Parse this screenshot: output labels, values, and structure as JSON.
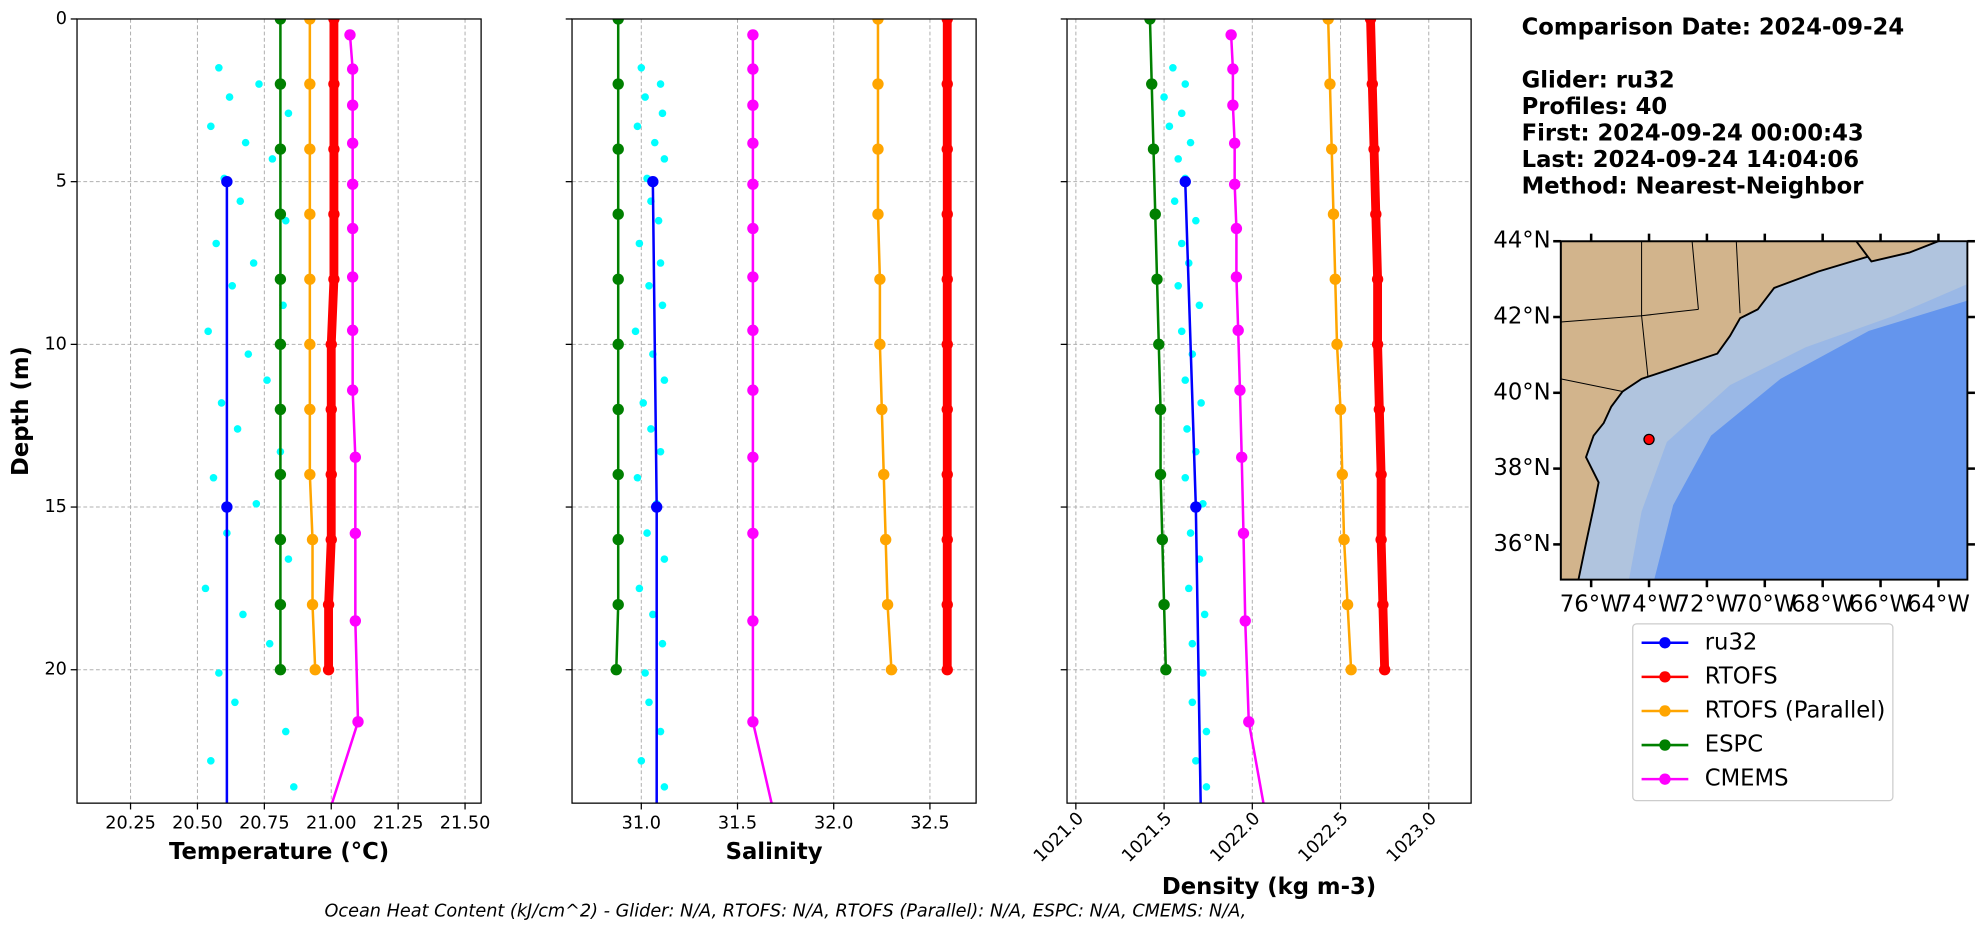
{
  "chart_data": [
    {
      "type": "line",
      "x_label": "Temperature (°C)",
      "y_label": "Depth (m)",
      "xlim": [
        20.05,
        21.56
      ],
      "ylim": [
        0,
        24.1
      ],
      "invert_y": true,
      "grid": true,
      "ytick_labels": true,
      "xticks": [
        20.25,
        {
          "value": 20.5,
          "label": "20.50"
        },
        20.75,
        {
          "value": 21,
          "label": "21.00"
        },
        21.25,
        {
          "value": 21.5,
          "label": "21.50"
        }
      ],
      "yticks": [
        0,
        5,
        10,
        15,
        20
      ],
      "glider_points": {
        "color": "#00ffff",
        "depths": [
          1.5,
          2.0,
          2.4,
          2.9,
          3.3,
          3.8,
          4.3,
          4.9,
          5.6,
          6.2,
          6.9,
          7.5,
          8.2,
          8.8,
          9.6,
          10.3,
          11.1,
          11.8,
          12.6,
          13.3,
          14.1,
          14.9,
          15.8,
          16.6,
          17.5,
          18.3,
          19.2,
          20.1,
          21.0,
          21.9,
          22.8,
          23.6
        ],
        "values": [
          20.58,
          20.73,
          20.62,
          20.84,
          20.55,
          20.68,
          20.78,
          20.6,
          20.66,
          20.83,
          20.57,
          20.71,
          20.63,
          20.82,
          20.54,
          20.69,
          20.76,
          20.59,
          20.65,
          20.81,
          20.56,
          20.72,
          20.61,
          20.84,
          20.53,
          20.67,
          20.77,
          20.58,
          20.64,
          20.83,
          20.55,
          20.86
        ]
      },
      "series": [
        {
          "name": "ru32",
          "color": "#0000ff",
          "linewidth": 2,
          "depths": [
            5,
            15,
            25
          ],
          "values": [
            20.61,
            20.61,
            20.61
          ]
        },
        {
          "name": "RTOFS",
          "color": "#ff0000",
          "linewidth": 7,
          "depths": [
            0,
            2,
            4,
            6,
            8,
            10,
            12,
            14,
            16,
            18,
            20
          ],
          "values": [
            21.01,
            21.01,
            21.01,
            21.01,
            21.01,
            21.0,
            21.0,
            21.0,
            21.0,
            20.99,
            20.99
          ]
        },
        {
          "name": "RTOFS (Parallel)",
          "color": "#ffa500",
          "linewidth": 2,
          "depths": [
            0,
            2,
            4,
            6,
            8,
            10,
            12,
            14,
            16,
            18,
            20
          ],
          "values": [
            20.92,
            20.92,
            20.92,
            20.92,
            20.92,
            20.92,
            20.92,
            20.92,
            20.93,
            20.93,
            20.94
          ]
        },
        {
          "name": "ESPC",
          "color": "#008000",
          "linewidth": 2,
          "depths": [
            0,
            2,
            4,
            6,
            8,
            10,
            12,
            14,
            16,
            18,
            20
          ],
          "values": [
            20.81,
            20.81,
            20.81,
            20.81,
            20.81,
            20.81,
            20.81,
            20.81,
            20.81,
            20.81,
            20.81
          ]
        },
        {
          "name": "CMEMS",
          "color": "#ff00ff",
          "linewidth": 2,
          "depths": [
            0.49,
            1.54,
            2.65,
            3.82,
            5.08,
            6.44,
            7.93,
            9.57,
            11.41,
            13.47,
            15.81,
            18.5,
            21.6,
            25.21
          ],
          "values": [
            21.07,
            21.08,
            21.08,
            21.08,
            21.08,
            21.08,
            21.08,
            21.08,
            21.08,
            21.09,
            21.09,
            21.09,
            21.1,
            20.96
          ]
        }
      ]
    },
    {
      "type": "line",
      "x_label": "Salinity",
      "xlim": [
        30.64,
        32.74
      ],
      "ylim": [
        0,
        24.1
      ],
      "invert_y": true,
      "grid": true,
      "ytick_labels": false,
      "xticks": [
        {
          "value": 31,
          "label": "31.0"
        },
        31.5,
        {
          "value": 32,
          "label": "32.0"
        },
        32.5
      ],
      "yticks": [
        0,
        5,
        10,
        15,
        20
      ],
      "glider_points": {
        "color": "#00ffff",
        "depths": [
          1.5,
          2.0,
          2.4,
          2.9,
          3.3,
          3.8,
          4.3,
          4.9,
          5.6,
          6.2,
          6.9,
          7.5,
          8.2,
          8.8,
          9.6,
          10.3,
          11.1,
          11.8,
          12.6,
          13.3,
          14.1,
          14.9,
          15.8,
          16.6,
          17.5,
          18.3,
          19.2,
          20.1,
          21.0,
          21.9,
          22.8,
          23.6
        ],
        "values": [
          31.0,
          31.1,
          31.02,
          31.11,
          30.98,
          31.07,
          31.12,
          31.03,
          31.05,
          31.09,
          30.99,
          31.1,
          31.04,
          31.11,
          30.97,
          31.06,
          31.12,
          31.01,
          31.05,
          31.1,
          30.98,
          31.08,
          31.03,
          31.12,
          30.99,
          31.06,
          31.11,
          31.02,
          31.04,
          31.1,
          31.0,
          31.12
        ]
      },
      "series": [
        {
          "name": "ru32",
          "color": "#0000ff",
          "linewidth": 2,
          "depths": [
            5,
            15,
            25
          ],
          "values": [
            31.06,
            31.08,
            31.08
          ]
        },
        {
          "name": "RTOFS",
          "color": "#ff0000",
          "linewidth": 7,
          "depths": [
            0,
            2,
            4,
            6,
            8,
            10,
            12,
            14,
            16,
            18,
            20
          ],
          "values": [
            32.59,
            32.59,
            32.59,
            32.59,
            32.59,
            32.59,
            32.59,
            32.59,
            32.59,
            32.59,
            32.59
          ]
        },
        {
          "name": "RTOFS (Parallel)",
          "color": "#ffa500",
          "linewidth": 2,
          "depths": [
            0,
            2,
            4,
            6,
            8,
            10,
            12,
            14,
            16,
            18,
            20
          ],
          "values": [
            32.23,
            32.23,
            32.23,
            32.23,
            32.24,
            32.24,
            32.25,
            32.26,
            32.27,
            32.28,
            32.3
          ]
        },
        {
          "name": "ESPC",
          "color": "#008000",
          "linewidth": 2,
          "depths": [
            0,
            2,
            4,
            6,
            8,
            10,
            12,
            14,
            16,
            18,
            20
          ],
          "values": [
            30.88,
            30.88,
            30.88,
            30.88,
            30.88,
            30.88,
            30.88,
            30.88,
            30.88,
            30.88,
            30.87
          ]
        },
        {
          "name": "CMEMS",
          "color": "#ff00ff",
          "linewidth": 2,
          "depths": [
            0.49,
            1.54,
            2.65,
            3.82,
            5.08,
            6.44,
            7.93,
            9.57,
            11.41,
            13.47,
            15.81,
            18.5,
            21.6,
            25.21
          ],
          "values": [
            31.58,
            31.58,
            31.58,
            31.58,
            31.58,
            31.58,
            31.58,
            31.58,
            31.58,
            31.58,
            31.58,
            31.58,
            31.58,
            31.72
          ]
        }
      ]
    },
    {
      "type": "line",
      "x_label": "Density (kg m-3)",
      "xlim": [
        1020.95,
        1023.24
      ],
      "ylim": [
        0,
        24.1
      ],
      "invert_y": true,
      "grid": true,
      "ytick_labels": false,
      "xtick_rotation": 45,
      "xticks": [
        {
          "value": 1021,
          "label": "1021.0"
        },
        1021.5,
        {
          "value": 1022,
          "label": "1022.0"
        },
        1022.5,
        {
          "value": 1023,
          "label": "1023.0"
        }
      ],
      "yticks": [
        0,
        5,
        10,
        15,
        20
      ],
      "glider_points": {
        "color": "#00ffff",
        "depths": [
          1.5,
          2.0,
          2.4,
          2.9,
          3.3,
          3.8,
          4.3,
          4.9,
          5.6,
          6.2,
          6.9,
          7.5,
          8.2,
          8.8,
          9.6,
          10.3,
          11.1,
          11.8,
          12.6,
          13.3,
          14.1,
          14.9,
          15.8,
          16.6,
          17.5,
          18.3,
          19.2,
          20.1,
          21.0,
          21.9,
          22.8,
          23.6
        ],
        "values": [
          1021.55,
          1021.62,
          1021.5,
          1021.6,
          1021.53,
          1021.65,
          1021.58,
          1021.62,
          1021.56,
          1021.68,
          1021.6,
          1021.64,
          1021.58,
          1021.7,
          1021.6,
          1021.66,
          1021.62,
          1021.71,
          1021.63,
          1021.68,
          1021.62,
          1021.72,
          1021.65,
          1021.7,
          1021.64,
          1021.73,
          1021.66,
          1021.72,
          1021.66,
          1021.74,
          1021.68,
          1021.74
        ]
      },
      "series": [
        {
          "name": "ru32",
          "color": "#0000ff",
          "linewidth": 2,
          "depths": [
            5,
            15,
            25
          ],
          "values": [
            1021.62,
            1021.68,
            1021.71
          ]
        },
        {
          "name": "RTOFS",
          "color": "#ff0000",
          "linewidth": 7,
          "depths": [
            0,
            2,
            4,
            6,
            8,
            10,
            12,
            14,
            16,
            18,
            20
          ],
          "values": [
            1022.67,
            1022.68,
            1022.69,
            1022.7,
            1022.71,
            1022.71,
            1022.72,
            1022.73,
            1022.73,
            1022.74,
            1022.75
          ]
        },
        {
          "name": "RTOFS (Parallel)",
          "color": "#ffa500",
          "linewidth": 2,
          "depths": [
            0,
            2,
            4,
            6,
            8,
            10,
            12,
            14,
            16,
            18,
            20
          ],
          "values": [
            1022.43,
            1022.44,
            1022.45,
            1022.46,
            1022.47,
            1022.48,
            1022.5,
            1022.51,
            1022.52,
            1022.54,
            1022.56
          ]
        },
        {
          "name": "ESPC",
          "color": "#008000",
          "linewidth": 2,
          "depths": [
            0,
            2,
            4,
            6,
            8,
            10,
            12,
            14,
            16,
            18,
            20
          ],
          "values": [
            1021.42,
            1021.43,
            1021.44,
            1021.45,
            1021.46,
            1021.47,
            1021.48,
            1021.48,
            1021.49,
            1021.5,
            1021.51
          ]
        },
        {
          "name": "CMEMS",
          "color": "#ff00ff",
          "linewidth": 2,
          "depths": [
            0.49,
            1.54,
            2.65,
            3.82,
            5.08,
            6.44,
            7.93,
            9.57,
            11.41,
            13.47,
            15.81,
            18.5,
            21.6,
            25.21
          ],
          "values": [
            1021.88,
            1021.89,
            1021.89,
            1021.9,
            1021.9,
            1021.91,
            1021.91,
            1021.92,
            1021.93,
            1021.94,
            1021.95,
            1021.96,
            1021.98,
            1022.1
          ]
        }
      ]
    }
  ],
  "info": {
    "lines": [
      "Comparison Date: 2024-09-24",
      "Glider: ru32",
      "Profiles: 40",
      "First: 2024-09-24 00:00:43",
      "Last: 2024-09-24 14:04:06",
      "Method: Nearest-Neighbor"
    ]
  },
  "map": {
    "xlim": [
      -77.05,
      -63.0
    ],
    "ylim": [
      35.07,
      44.0
    ],
    "lat_ticks": [
      {
        "value": 44,
        "label": "44°N"
      },
      {
        "value": 42,
        "label": "42°N"
      },
      {
        "value": 40,
        "label": "40°N"
      },
      {
        "value": 38,
        "label": "38°N"
      },
      {
        "value": 36,
        "label": "36°N"
      }
    ],
    "lon_ticks": [
      {
        "value": -76,
        "label": "76°W"
      },
      {
        "value": -74,
        "label": "74°W"
      },
      {
        "value": -72,
        "label": "72°W"
      },
      {
        "value": -70,
        "label": "70°W"
      },
      {
        "value": -68,
        "label": "68°W"
      },
      {
        "value": -66,
        "label": "66°W"
      },
      {
        "value": -64,
        "label": "64°W"
      }
    ],
    "glider_position": {
      "lon": -74.0,
      "lat": 38.77,
      "color": "#ff0000"
    }
  },
  "footer": "Ocean Heat Content (kJ/cm^2) - Glider: N/A,  RTOFS: N/A,  RTOFS (Parallel): N/A,  ESPC: N/A,  CMEMS: N/A,"
}
